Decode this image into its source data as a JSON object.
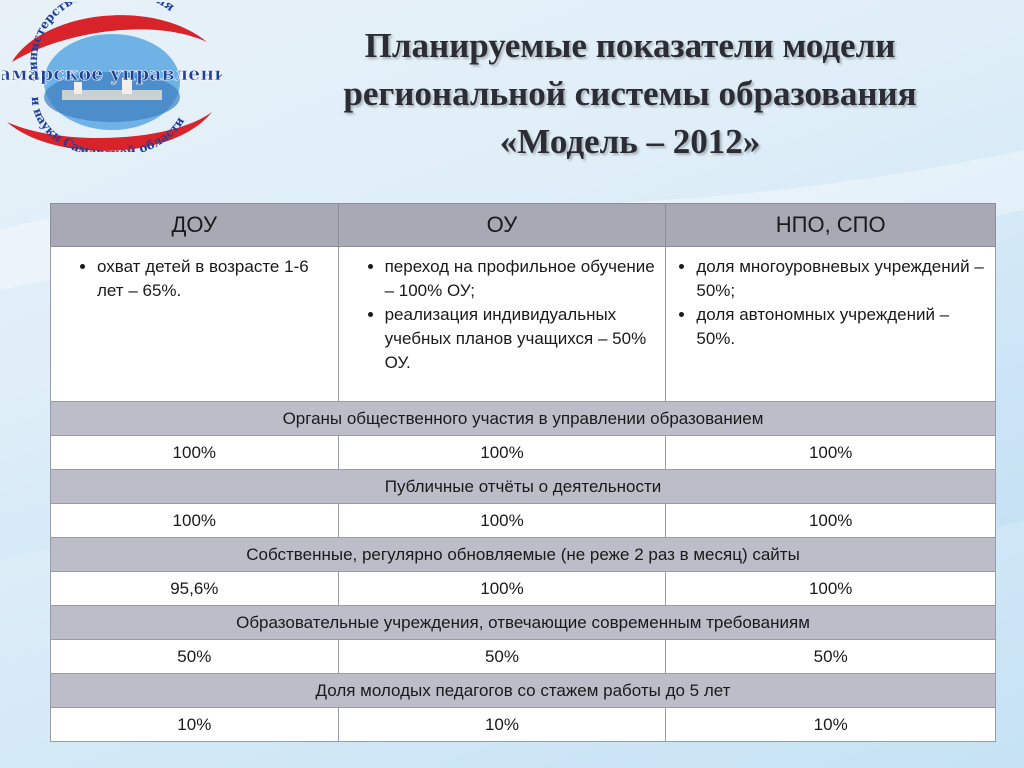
{
  "logo": {
    "top_text": "министерство образования",
    "main_text": "Самарское управление",
    "bottom_text": "и науки Самарской области"
  },
  "title": {
    "line1": "Планируемые показатели модели",
    "line2": "региональной системы образования",
    "line3": "«Модель – 2012»"
  },
  "table": {
    "headers": [
      "ДОУ",
      "ОУ",
      "НПО, СПО"
    ],
    "lists": [
      [
        "охват детей в возрасте 1-6 лет – 65%."
      ],
      [
        "переход на профильное обучение – 100% ОУ;",
        "реализация индивидуальных учебных планов учащихся – 50% ОУ."
      ],
      [
        "доля многоуровневых учреждений –50%;",
        "доля автономных учреждений – 50%."
      ]
    ],
    "sections": [
      {
        "label": "Органы общественного участия в управлении образованием",
        "values": [
          "100%",
          "100%",
          "100%"
        ]
      },
      {
        "label": "Публичные отчёты о деятельности",
        "values": [
          "100%",
          "100%",
          "100%"
        ]
      },
      {
        "label": "Собственные, регулярно обновляемые (не реже 2 раз в месяц) сайты",
        "values": [
          "95,6%",
          "100%",
          "100%"
        ]
      },
      {
        "label": "Образовательные учреждения, отвечающие современным требованиям",
        "values": [
          "50%",
          "50%",
          "50%"
        ]
      },
      {
        "label": "Доля молодых педагогов со стажем работы до 5 лет",
        "values": [
          "10%",
          "10%",
          "10%"
        ]
      }
    ]
  },
  "colors": {
    "header_bg": "#a9a9b6",
    "band_bg": "#bdbdc9",
    "logo_red": "#d8232a",
    "logo_blue": "#1e3f9a"
  }
}
